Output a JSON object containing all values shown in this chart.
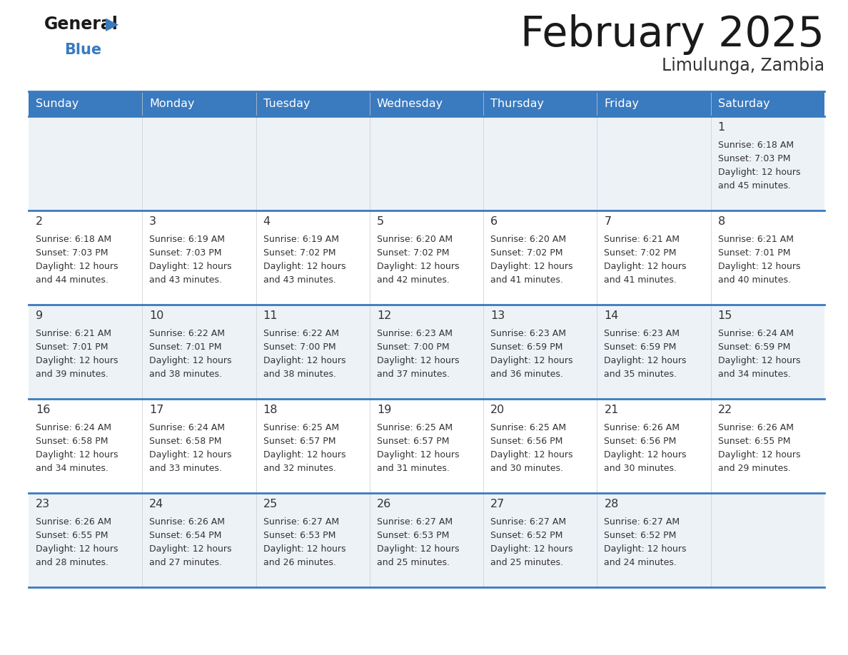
{
  "title": "February 2025",
  "subtitle": "Limulunga, Zambia",
  "header_color": "#3a7abf",
  "header_text_color": "#ffffff",
  "cell_bg_light": "#edf2f7",
  "cell_bg_white": "#ffffff",
  "border_color": "#3a7abf",
  "text_color": "#333333",
  "day_headers": [
    "Sunday",
    "Monday",
    "Tuesday",
    "Wednesday",
    "Thursday",
    "Friday",
    "Saturday"
  ],
  "title_color": "#1a1a1a",
  "subtitle_color": "#333333",
  "logo_general_color": "#1a1a1a",
  "logo_blue_color": "#3a7abf",
  "days": [
    {
      "day": 1,
      "col": 6,
      "row": 0,
      "sunrise": "6:18 AM",
      "sunset": "7:03 PM",
      "daylight": "Daylight: 12 hours",
      "daylight2": "and 45 minutes."
    },
    {
      "day": 2,
      "col": 0,
      "row": 1,
      "sunrise": "6:18 AM",
      "sunset": "7:03 PM",
      "daylight": "Daylight: 12 hours",
      "daylight2": "and 44 minutes."
    },
    {
      "day": 3,
      "col": 1,
      "row": 1,
      "sunrise": "6:19 AM",
      "sunset": "7:03 PM",
      "daylight": "Daylight: 12 hours",
      "daylight2": "and 43 minutes."
    },
    {
      "day": 4,
      "col": 2,
      "row": 1,
      "sunrise": "6:19 AM",
      "sunset": "7:02 PM",
      "daylight": "Daylight: 12 hours",
      "daylight2": "and 43 minutes."
    },
    {
      "day": 5,
      "col": 3,
      "row": 1,
      "sunrise": "6:20 AM",
      "sunset": "7:02 PM",
      "daylight": "Daylight: 12 hours",
      "daylight2": "and 42 minutes."
    },
    {
      "day": 6,
      "col": 4,
      "row": 1,
      "sunrise": "6:20 AM",
      "sunset": "7:02 PM",
      "daylight": "Daylight: 12 hours",
      "daylight2": "and 41 minutes."
    },
    {
      "day": 7,
      "col": 5,
      "row": 1,
      "sunrise": "6:21 AM",
      "sunset": "7:02 PM",
      "daylight": "Daylight: 12 hours",
      "daylight2": "and 41 minutes."
    },
    {
      "day": 8,
      "col": 6,
      "row": 1,
      "sunrise": "6:21 AM",
      "sunset": "7:01 PM",
      "daylight": "Daylight: 12 hours",
      "daylight2": "and 40 minutes."
    },
    {
      "day": 9,
      "col": 0,
      "row": 2,
      "sunrise": "6:21 AM",
      "sunset": "7:01 PM",
      "daylight": "Daylight: 12 hours",
      "daylight2": "and 39 minutes."
    },
    {
      "day": 10,
      "col": 1,
      "row": 2,
      "sunrise": "6:22 AM",
      "sunset": "7:01 PM",
      "daylight": "Daylight: 12 hours",
      "daylight2": "and 38 minutes."
    },
    {
      "day": 11,
      "col": 2,
      "row": 2,
      "sunrise": "6:22 AM",
      "sunset": "7:00 PM",
      "daylight": "Daylight: 12 hours",
      "daylight2": "and 38 minutes."
    },
    {
      "day": 12,
      "col": 3,
      "row": 2,
      "sunrise": "6:23 AM",
      "sunset": "7:00 PM",
      "daylight": "Daylight: 12 hours",
      "daylight2": "and 37 minutes."
    },
    {
      "day": 13,
      "col": 4,
      "row": 2,
      "sunrise": "6:23 AM",
      "sunset": "6:59 PM",
      "daylight": "Daylight: 12 hours",
      "daylight2": "and 36 minutes."
    },
    {
      "day": 14,
      "col": 5,
      "row": 2,
      "sunrise": "6:23 AM",
      "sunset": "6:59 PM",
      "daylight": "Daylight: 12 hours",
      "daylight2": "and 35 minutes."
    },
    {
      "day": 15,
      "col": 6,
      "row": 2,
      "sunrise": "6:24 AM",
      "sunset": "6:59 PM",
      "daylight": "Daylight: 12 hours",
      "daylight2": "and 34 minutes."
    },
    {
      "day": 16,
      "col": 0,
      "row": 3,
      "sunrise": "6:24 AM",
      "sunset": "6:58 PM",
      "daylight": "Daylight: 12 hours",
      "daylight2": "and 34 minutes."
    },
    {
      "day": 17,
      "col": 1,
      "row": 3,
      "sunrise": "6:24 AM",
      "sunset": "6:58 PM",
      "daylight": "Daylight: 12 hours",
      "daylight2": "and 33 minutes."
    },
    {
      "day": 18,
      "col": 2,
      "row": 3,
      "sunrise": "6:25 AM",
      "sunset": "6:57 PM",
      "daylight": "Daylight: 12 hours",
      "daylight2": "and 32 minutes."
    },
    {
      "day": 19,
      "col": 3,
      "row": 3,
      "sunrise": "6:25 AM",
      "sunset": "6:57 PM",
      "daylight": "Daylight: 12 hours",
      "daylight2": "and 31 minutes."
    },
    {
      "day": 20,
      "col": 4,
      "row": 3,
      "sunrise": "6:25 AM",
      "sunset": "6:56 PM",
      "daylight": "Daylight: 12 hours",
      "daylight2": "and 30 minutes."
    },
    {
      "day": 21,
      "col": 5,
      "row": 3,
      "sunrise": "6:26 AM",
      "sunset": "6:56 PM",
      "daylight": "Daylight: 12 hours",
      "daylight2": "and 30 minutes."
    },
    {
      "day": 22,
      "col": 6,
      "row": 3,
      "sunrise": "6:26 AM",
      "sunset": "6:55 PM",
      "daylight": "Daylight: 12 hours",
      "daylight2": "and 29 minutes."
    },
    {
      "day": 23,
      "col": 0,
      "row": 4,
      "sunrise": "6:26 AM",
      "sunset": "6:55 PM",
      "daylight": "Daylight: 12 hours",
      "daylight2": "and 28 minutes."
    },
    {
      "day": 24,
      "col": 1,
      "row": 4,
      "sunrise": "6:26 AM",
      "sunset": "6:54 PM",
      "daylight": "Daylight: 12 hours",
      "daylight2": "and 27 minutes."
    },
    {
      "day": 25,
      "col": 2,
      "row": 4,
      "sunrise": "6:27 AM",
      "sunset": "6:53 PM",
      "daylight": "Daylight: 12 hours",
      "daylight2": "and 26 minutes."
    },
    {
      "day": 26,
      "col": 3,
      "row": 4,
      "sunrise": "6:27 AM",
      "sunset": "6:53 PM",
      "daylight": "Daylight: 12 hours",
      "daylight2": "and 25 minutes."
    },
    {
      "day": 27,
      "col": 4,
      "row": 4,
      "sunrise": "6:27 AM",
      "sunset": "6:52 PM",
      "daylight": "Daylight: 12 hours",
      "daylight2": "and 25 minutes."
    },
    {
      "day": 28,
      "col": 5,
      "row": 4,
      "sunrise": "6:27 AM",
      "sunset": "6:52 PM",
      "daylight": "Daylight: 12 hours",
      "daylight2": "and 24 minutes."
    }
  ]
}
